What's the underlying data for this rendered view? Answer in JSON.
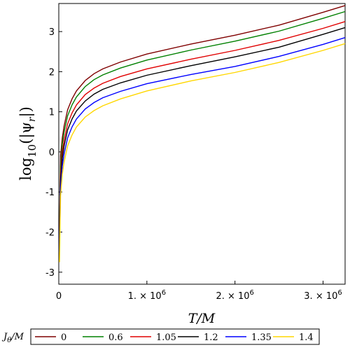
{
  "chart_data": {
    "type": "line",
    "xlabel": "T/M",
    "ylabel": "log10(|ψr|)",
    "xlim": [
      0,
      3250000
    ],
    "ylim": [
      -3.3,
      3.7
    ],
    "x_ticks": [
      {
        "value": 0,
        "label": "0"
      },
      {
        "value": 1000000,
        "label": "1. × 10",
        "exp": "6"
      },
      {
        "value": 2000000,
        "label": "2. × 10",
        "exp": "6"
      },
      {
        "value": 3000000,
        "label": "3. × 10",
        "exp": "6"
      }
    ],
    "y_ticks": [
      -3,
      -2,
      -1,
      0,
      1,
      2,
      3
    ],
    "legend_title": "Jθ/M",
    "legend_placement": "bottom",
    "x": [
      8000,
      20000,
      40000,
      60000,
      100000,
      150000,
      200000,
      300000,
      400000,
      500000,
      700000,
      1000000,
      1500000,
      2000000,
      2500000,
      3000000,
      3250000
    ],
    "series": [
      {
        "name": "0",
        "color": "#7f0000",
        "values": [
          -2.0,
          -0.1,
          0.35,
          0.65,
          1.05,
          1.32,
          1.52,
          1.78,
          1.95,
          2.07,
          2.24,
          2.44,
          2.69,
          2.91,
          3.16,
          3.48,
          3.65
        ]
      },
      {
        "name": "0.6",
        "color": "#008000",
        "values": [
          -2.1,
          -0.35,
          0.2,
          0.5,
          0.9,
          1.17,
          1.37,
          1.63,
          1.8,
          1.92,
          2.09,
          2.29,
          2.54,
          2.76,
          3.01,
          3.33,
          3.5
        ]
      },
      {
        "name": "1.05",
        "color": "#e00000",
        "values": [
          -2.2,
          -0.55,
          0.0,
          0.3,
          0.7,
          0.97,
          1.17,
          1.43,
          1.59,
          1.71,
          1.88,
          2.07,
          2.31,
          2.53,
          2.78,
          3.08,
          3.25
        ]
      },
      {
        "name": "1.2",
        "color": "#000000",
        "values": [
          -2.3,
          -0.7,
          -0.15,
          0.15,
          0.55,
          0.82,
          1.02,
          1.27,
          1.44,
          1.56,
          1.72,
          1.91,
          2.15,
          2.37,
          2.61,
          2.93,
          3.1
        ]
      },
      {
        "name": "1.35",
        "color": "#0000ff",
        "values": [
          -2.5,
          -0.9,
          -0.35,
          -0.05,
          0.35,
          0.62,
          0.82,
          1.07,
          1.23,
          1.35,
          1.51,
          1.7,
          1.93,
          2.13,
          2.38,
          2.68,
          2.85
        ]
      },
      {
        "name": "1.4",
        "color": "#ffd700",
        "values": [
          -2.75,
          -1.1,
          -0.55,
          -0.25,
          0.15,
          0.42,
          0.62,
          0.87,
          1.03,
          1.15,
          1.32,
          1.52,
          1.77,
          1.98,
          2.23,
          2.53,
          2.7
        ]
      }
    ]
  }
}
